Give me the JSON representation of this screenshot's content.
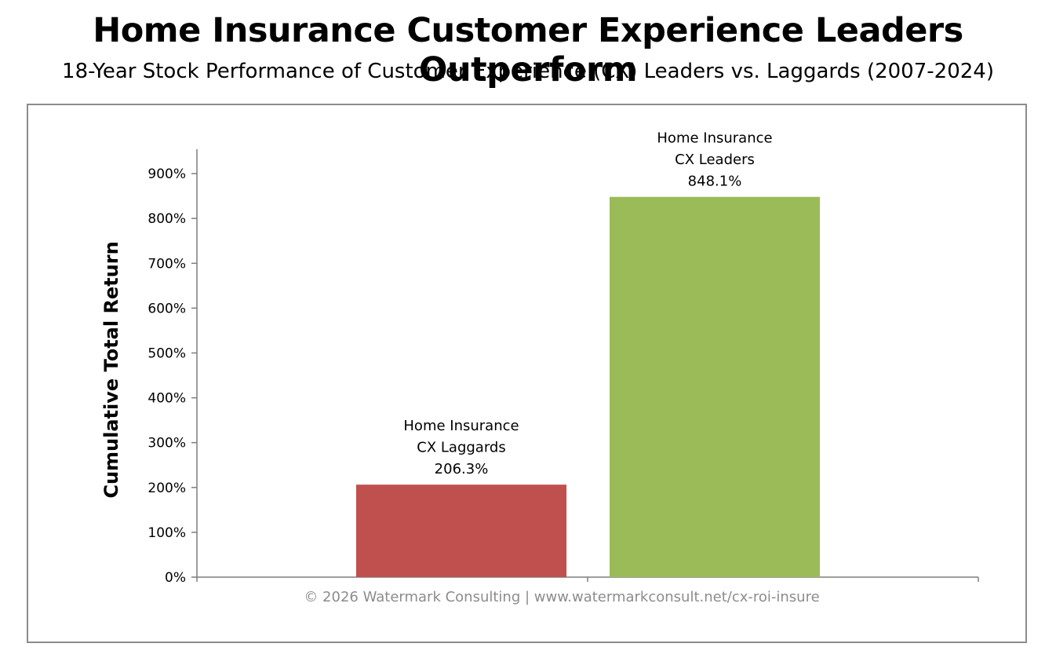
{
  "chart_data": {
    "type": "bar",
    "title": "Home Insurance Customer Experience Leaders Outperform",
    "subtitle": "18-Year Stock Performance of Customer Experience (CX) Leaders vs. Laggards (2007-2024)",
    "ylabel": "Cumulative Total Return",
    "xlabel": "",
    "ylim": [
      0,
      950
    ],
    "yticks": [
      0,
      100,
      200,
      300,
      400,
      500,
      600,
      700,
      800,
      900
    ],
    "ytick_labels": [
      "0%",
      "100%",
      "200%",
      "300%",
      "400%",
      "500%",
      "600%",
      "700%",
      "800%",
      "900%"
    ],
    "grid": false,
    "legend": "none",
    "categories": [
      "Home Insurance CX Laggards",
      "Home Insurance CX Leaders"
    ],
    "values": [
      206.3,
      848.1
    ],
    "bars": [
      {
        "label_lines": [
          "Home Insurance",
          "CX Laggards",
          "206.3%"
        ],
        "value": 206.3,
        "color": "#c0504d"
      },
      {
        "label_lines": [
          "Home Insurance",
          "CX Leaders",
          "848.1%"
        ],
        "value": 848.1,
        "color": "#9bbb59"
      }
    ],
    "footnote": "© 2026 Watermark Consulting | www.watermarkconsult.net/cx-roi-insure"
  }
}
